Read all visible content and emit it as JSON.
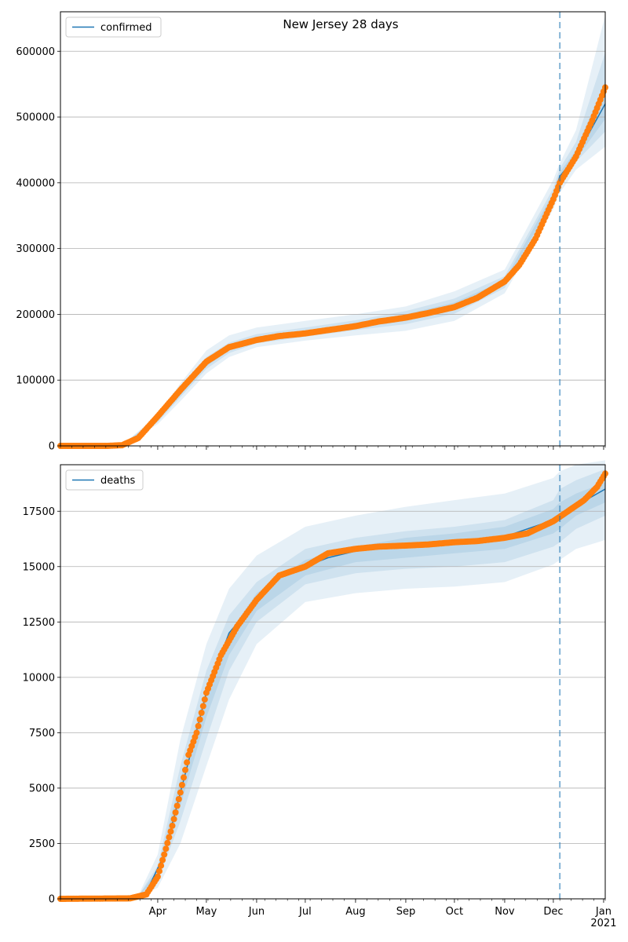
{
  "chart_data": [
    {
      "type": "line",
      "title": "New Jersey 28 days",
      "xlabel": "",
      "ylabel": "",
      "grid": "horizontal",
      "legend_position": "top-left",
      "xlim": [
        "2020-02-01",
        "2021-01-02"
      ],
      "ylim": [
        0,
        660000
      ],
      "yticks": [
        0,
        100000,
        200000,
        300000,
        400000,
        500000,
        600000
      ],
      "ytick_labels": [
        "0",
        "100000",
        "200000",
        "300000",
        "400000",
        "500000",
        "600000"
      ],
      "forecast_start": "2020-12-05",
      "series": [
        {
          "name": "confirmed",
          "kind": "model-line",
          "color": "#1f77b4",
          "x": [
            "2020-02-01",
            "2020-03-01",
            "2020-03-10",
            "2020-03-20",
            "2020-04-01",
            "2020-04-15",
            "2020-05-01",
            "2020-05-15",
            "2020-06-01",
            "2020-06-15",
            "2020-07-01",
            "2020-07-15",
            "2020-08-01",
            "2020-08-15",
            "2020-09-01",
            "2020-09-15",
            "2020-10-01",
            "2020-10-15",
            "2020-11-01",
            "2020-11-10",
            "2020-11-20",
            "2020-12-01",
            "2020-12-05",
            "2020-12-15",
            "2021-01-02"
          ],
          "y": [
            0,
            0,
            1000,
            10000,
            40000,
            80000,
            125000,
            148000,
            162000,
            168000,
            172000,
            178000,
            183000,
            189000,
            195000,
            203000,
            212000,
            225000,
            248000,
            273000,
            315000,
            380000,
            410000,
            440000,
            520000
          ]
        },
        {
          "name": "",
          "kind": "observed",
          "color": "#ff7f0e",
          "x": [
            "2020-02-01",
            "2020-03-01",
            "2020-03-10",
            "2020-03-20",
            "2020-04-01",
            "2020-04-15",
            "2020-05-01",
            "2020-05-15",
            "2020-06-01",
            "2020-06-15",
            "2020-07-01",
            "2020-07-15",
            "2020-08-01",
            "2020-08-15",
            "2020-09-01",
            "2020-09-15",
            "2020-10-01",
            "2020-10-15",
            "2020-11-01",
            "2020-11-10",
            "2020-11-20",
            "2020-12-01",
            "2020-12-05",
            "2020-12-15",
            "2020-12-25",
            "2021-01-02"
          ],
          "y": [
            0,
            0,
            1000,
            12000,
            45000,
            85000,
            128000,
            150000,
            161000,
            167000,
            171000,
            176000,
            182000,
            189000,
            195000,
            202000,
            211000,
            225000,
            250000,
            275000,
            315000,
            375000,
            400000,
            440000,
            495000,
            545000
          ]
        }
      ],
      "bands": [
        {
          "x": [
            "2020-03-10",
            "2020-04-01",
            "2020-04-15",
            "2020-05-01",
            "2020-05-15",
            "2020-06-01",
            "2020-07-01",
            "2020-08-01",
            "2020-09-01",
            "2020-10-01",
            "2020-11-01",
            "2020-12-01",
            "2020-12-05",
            "2020-12-15",
            "2021-01-02"
          ],
          "lower": [
            500,
            33000,
            68000,
            110000,
            135000,
            150000,
            160000,
            168000,
            175000,
            190000,
            232000,
            360000,
            385000,
            420000,
            455000
          ],
          "upper": [
            1500,
            47000,
            95000,
            145000,
            168000,
            180000,
            190000,
            200000,
            212000,
            235000,
            268000,
            405000,
            430000,
            480000,
            655000
          ]
        },
        {
          "x": [
            "2020-03-10",
            "2020-04-01",
            "2020-04-15",
            "2020-05-01",
            "2020-05-15",
            "2020-06-01",
            "2020-07-01",
            "2020-08-01",
            "2020-09-01",
            "2020-10-01",
            "2020-11-01",
            "2020-12-01",
            "2020-12-05",
            "2020-12-15",
            "2021-01-02"
          ],
          "lower": [
            700,
            36000,
            74000,
            117000,
            141000,
            156000,
            166000,
            176000,
            185000,
            201000,
            240000,
            370000,
            397000,
            432000,
            478000
          ],
          "upper": [
            1200,
            44000,
            88000,
            135000,
            157000,
            170000,
            180000,
            191000,
            205000,
            224000,
            258000,
            392000,
            422000,
            462000,
            598000
          ]
        },
        {
          "x": [
            "2020-03-10",
            "2020-04-01",
            "2020-04-15",
            "2020-05-01",
            "2020-05-15",
            "2020-06-01",
            "2020-07-01",
            "2020-08-01",
            "2020-09-01",
            "2020-10-01",
            "2020-11-01",
            "2020-12-01",
            "2020-12-05",
            "2020-12-15",
            "2021-01-02"
          ],
          "lower": [
            850,
            38000,
            77000,
            121000,
            145000,
            159000,
            169000,
            179000,
            190000,
            206000,
            244000,
            375000,
            404000,
            436000,
            497000
          ],
          "upper": [
            1100,
            42000,
            84000,
            130000,
            152000,
            166000,
            175000,
            187000,
            200000,
            218000,
            252000,
            385000,
            416000,
            450000,
            555000
          ]
        }
      ]
    },
    {
      "type": "line",
      "title": "",
      "xlabel": "",
      "ylabel": "",
      "grid": "horizontal",
      "legend_position": "top-left",
      "xlim": [
        "2020-02-01",
        "2021-01-02"
      ],
      "ylim": [
        0,
        19600
      ],
      "yticks": [
        0,
        2500,
        5000,
        7500,
        10000,
        12500,
        15000,
        17500
      ],
      "ytick_labels": [
        "0",
        "2500",
        "5000",
        "7500",
        "10000",
        "12500",
        "15000",
        "17500"
      ],
      "xtick_labels": [
        "Apr",
        "May",
        "Jun",
        "Jul",
        "Aug",
        "Sep",
        "Oct",
        "Nov",
        "Dec",
        "Jan\n2021"
      ],
      "xtick_dates": [
        "2020-04-01",
        "2020-05-01",
        "2020-06-01",
        "2020-07-01",
        "2020-08-01",
        "2020-09-01",
        "2020-10-01",
        "2020-11-01",
        "2020-12-01",
        "2021-01-01"
      ],
      "forecast_start": "2020-12-05",
      "series": [
        {
          "name": "deaths",
          "kind": "model-line",
          "color": "#1f77b4",
          "x": [
            "2020-02-01",
            "2020-03-15",
            "2020-03-25",
            "2020-04-05",
            "2020-04-15",
            "2020-04-25",
            "2020-05-01",
            "2020-05-15",
            "2020-06-01",
            "2020-06-15",
            "2020-07-01",
            "2020-07-15",
            "2020-08-01",
            "2020-09-01",
            "2020-10-01",
            "2020-11-01",
            "2020-12-01",
            "2020-12-05",
            "2020-12-15",
            "2021-01-02"
          ],
          "y": [
            0,
            30,
            300,
            2000,
            4800,
            7600,
            9300,
            12000,
            13500,
            14500,
            15000,
            15400,
            15700,
            15950,
            16100,
            16350,
            17100,
            17300,
            17750,
            18500
          ]
        },
        {
          "name": "",
          "kind": "observed",
          "color": "#ff7f0e",
          "x": [
            "2020-02-01",
            "2020-03-15",
            "2020-03-25",
            "2020-04-01",
            "2020-04-05",
            "2020-04-10",
            "2020-04-15",
            "2020-04-20",
            "2020-04-25",
            "2020-05-01",
            "2020-05-10",
            "2020-05-20",
            "2020-06-01",
            "2020-06-15",
            "2020-07-01",
            "2020-07-15",
            "2020-08-01",
            "2020-08-15",
            "2020-09-01",
            "2020-09-15",
            "2020-10-01",
            "2020-10-15",
            "2020-11-01",
            "2020-11-15",
            "2020-12-01",
            "2020-12-10",
            "2020-12-20",
            "2020-12-28",
            "2021-01-02"
          ],
          "y": [
            0,
            20,
            200,
            1000,
            2000,
            3300,
            4800,
            6500,
            7500,
            9300,
            11000,
            12300,
            13500,
            14600,
            15000,
            15600,
            15800,
            15900,
            15950,
            16000,
            16100,
            16150,
            16300,
            16500,
            17050,
            17500,
            18000,
            18600,
            19200
          ]
        }
      ],
      "bands": [
        {
          "x": [
            "2020-03-20",
            "2020-04-01",
            "2020-04-15",
            "2020-05-01",
            "2020-05-15",
            "2020-06-01",
            "2020-07-01",
            "2020-08-01",
            "2020-09-01",
            "2020-10-01",
            "2020-11-01",
            "2020-12-01",
            "2020-12-05",
            "2020-12-15",
            "2021-01-02"
          ],
          "lower": [
            80,
            500,
            2500,
            6000,
            9000,
            11500,
            13400,
            13800,
            14000,
            14100,
            14300,
            15100,
            15300,
            15800,
            16200
          ],
          "upper": [
            150,
            2000,
            7200,
            11500,
            14000,
            15500,
            16800,
            17300,
            17700,
            18000,
            18300,
            19000,
            19300,
            19600,
            19800
          ]
        },
        {
          "x": [
            "2020-03-20",
            "2020-04-01",
            "2020-04-15",
            "2020-05-01",
            "2020-05-15",
            "2020-06-01",
            "2020-07-01",
            "2020-08-01",
            "2020-09-01",
            "2020-10-01",
            "2020-11-01",
            "2020-12-01",
            "2020-12-05",
            "2020-12-15",
            "2021-01-02"
          ],
          "lower": [
            100,
            800,
            3500,
            7200,
            10300,
            12500,
            14200,
            14700,
            14900,
            15000,
            15200,
            15900,
            16100,
            16700,
            17300
          ],
          "upper": [
            130,
            1500,
            6000,
            10300,
            12800,
            14300,
            15800,
            16300,
            16600,
            16800,
            17100,
            18000,
            18500,
            18900,
            19400
          ]
        },
        {
          "x": [
            "2020-03-20",
            "2020-04-01",
            "2020-04-15",
            "2020-05-01",
            "2020-05-15",
            "2020-06-01",
            "2020-07-01",
            "2020-08-01",
            "2020-09-01",
            "2020-10-01",
            "2020-11-01",
            "2020-12-01",
            "2020-12-05",
            "2020-12-15",
            "2021-01-02"
          ],
          "lower": [
            110,
            1000,
            4200,
            8200,
            11000,
            13000,
            14600,
            15200,
            15400,
            15600,
            15800,
            16500,
            16700,
            17300,
            17900
          ],
          "upper": [
            125,
            1300,
            5400,
            9500,
            12000,
            13800,
            15300,
            15900,
            16300,
            16500,
            16800,
            17600,
            17900,
            18300,
            18800
          ]
        }
      ]
    }
  ]
}
